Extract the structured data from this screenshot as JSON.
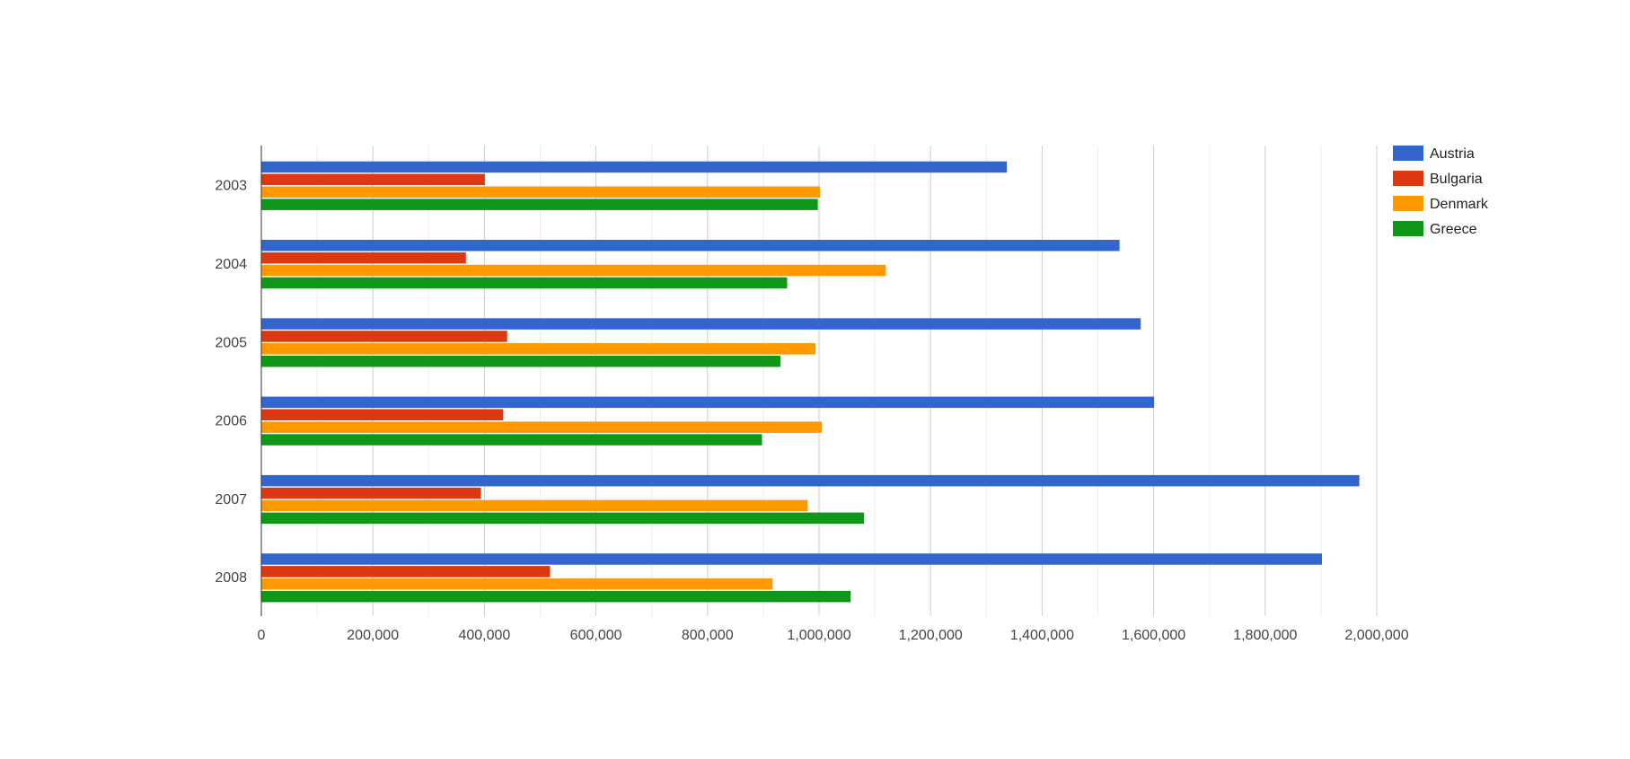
{
  "chart_data": {
    "type": "bar",
    "orientation": "horizontal",
    "categories": [
      "2003",
      "2004",
      "2005",
      "2006",
      "2007",
      "2008"
    ],
    "series": [
      {
        "name": "Austria",
        "color": "#3366cc",
        "values": [
          1336000,
          1538000,
          1576000,
          1600000,
          1968000,
          1901000
        ]
      },
      {
        "name": "Bulgaria",
        "color": "#dc3912",
        "values": [
          400000,
          366000,
          440000,
          433000,
          393000,
          517000
        ]
      },
      {
        "name": "Denmark",
        "color": "#ff9900",
        "values": [
          1001000,
          1119000,
          993000,
          1004000,
          979000,
          916000
        ]
      },
      {
        "name": "Greece",
        "color": "#109618",
        "values": [
          997000,
          942000,
          930000,
          897000,
          1080000,
          1056000
        ]
      }
    ],
    "x_ticks": [
      "0",
      "200,000",
      "400,000",
      "600,000",
      "800,000",
      "1,000,000",
      "1,200,000",
      "1,400,000",
      "1,600,000",
      "1,800,000",
      "2,000,000"
    ],
    "xlim": [
      0,
      2000000
    ],
    "title": "",
    "xlabel": "",
    "ylabel": "",
    "grid": true,
    "legend_position": "right"
  }
}
